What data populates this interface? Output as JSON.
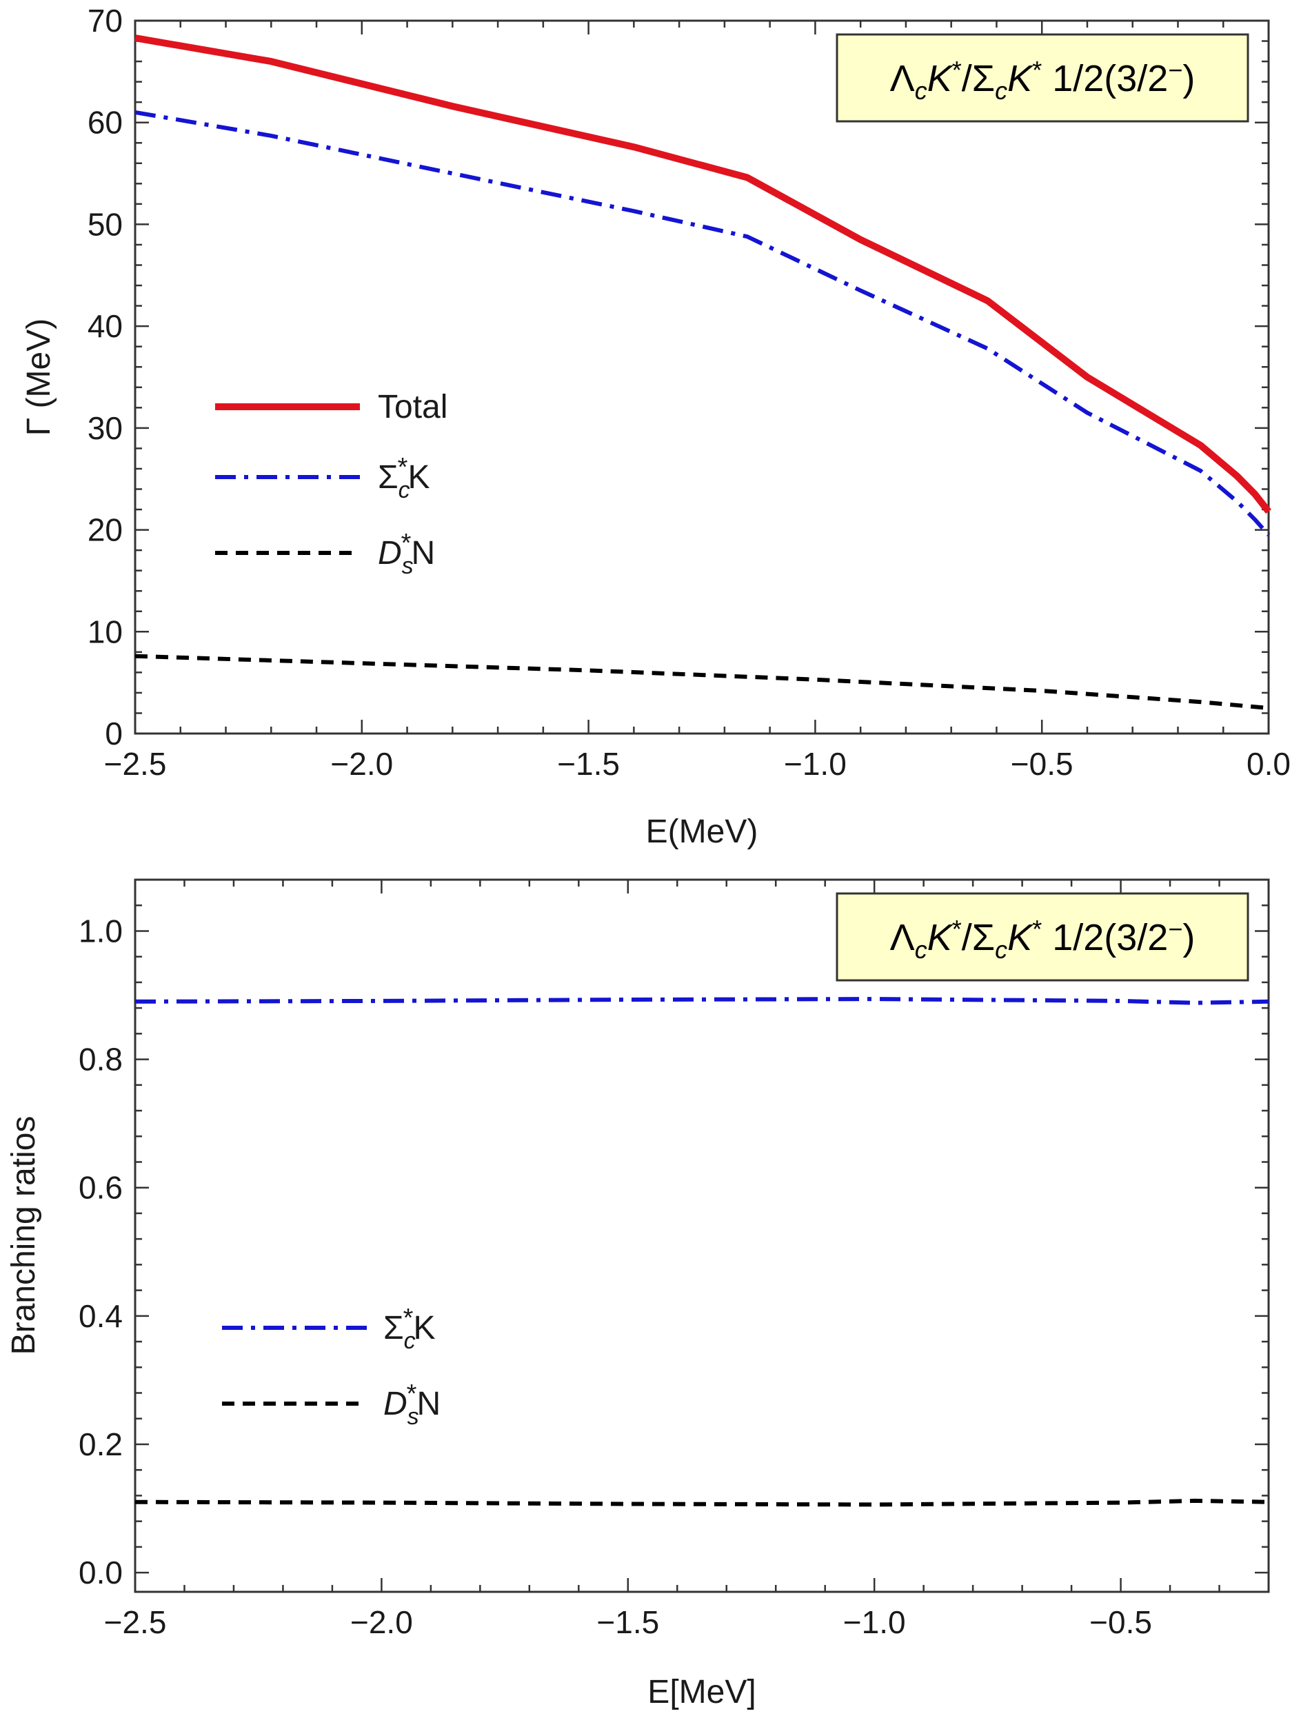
{
  "colors": {
    "total": "#e0141e",
    "sigma": "#1414d2",
    "ds": "#000000",
    "box_fill": "#ffffcc",
    "frame": "#333333"
  },
  "chart_data": [
    {
      "type": "line",
      "title": "ΛcK*/ΣcK* 1/2(3/2⁻)",
      "title_parts": [
        "Λ",
        "c",
        "K",
        "*",
        "/Σ",
        "c",
        "K",
        "*",
        " 1/2(3/2",
        "−",
        ")"
      ],
      "xlabel": "E(MeV)",
      "ylabel": "Γ (MeV)",
      "xlim": [
        -2.5,
        0.0
      ],
      "ylim": [
        0,
        70
      ],
      "xticks": [
        "−2.5",
        "−2.0",
        "−1.5",
        "−1.0",
        "−0.5",
        "0.0"
      ],
      "yticks": [
        "0",
        "10",
        "20",
        "30",
        "40",
        "50",
        "60",
        "70"
      ],
      "legend_position": "center-left",
      "series": [
        {
          "name": "Total",
          "style": "solid",
          "x": [
            -2.5,
            -2.2,
            -1.8,
            -1.4,
            -1.15,
            -0.9,
            -0.62,
            -0.4,
            -0.15,
            -0.07,
            -0.03,
            0.0
          ],
          "y": [
            68.3,
            66.0,
            61.6,
            57.6,
            54.6,
            48.5,
            42.5,
            35.0,
            28.3,
            25.3,
            23.5,
            21.8
          ]
        },
        {
          "name": "Σc*K",
          "name_parts": [
            "Σ",
            "c",
            "*",
            "K"
          ],
          "style": "dashdot",
          "x": [
            -2.5,
            -2.2,
            -1.8,
            -1.4,
            -1.15,
            -0.9,
            -0.62,
            -0.4,
            -0.15,
            -0.07,
            -0.03,
            0.0
          ],
          "y": [
            61.0,
            58.7,
            55.0,
            51.3,
            48.8,
            43.5,
            37.8,
            31.5,
            25.8,
            22.8,
            21.0,
            19.5
          ]
        },
        {
          "name": "Ds*N",
          "name_parts": [
            "D",
            "s",
            "*",
            "N"
          ],
          "style": "dashed",
          "x": [
            -2.5,
            -2.0,
            -1.5,
            -1.0,
            -0.5,
            -0.15,
            0.0
          ],
          "y": [
            7.6,
            6.9,
            6.2,
            5.3,
            4.2,
            3.1,
            2.5
          ]
        }
      ]
    },
    {
      "type": "line",
      "title": "ΛcK*/ΣcK* 1/2(3/2⁻)",
      "title_parts": [
        "Λ",
        "c",
        "K",
        "*",
        "/Σ",
        "c",
        "K",
        "*",
        " 1/2(3/2",
        "−",
        ")"
      ],
      "xlabel": "E[MeV]",
      "ylabel": "Branching ratios",
      "xlim": [
        -2.5,
        -0.2
      ],
      "ylim": [
        -0.03,
        1.08
      ],
      "xticks": [
        "−2.5",
        "−2.0",
        "−1.5",
        "−1.0",
        "−0.5"
      ],
      "yticks": [
        "0.0",
        "0.2",
        "0.4",
        "0.6",
        "0.8",
        "1.0"
      ],
      "legend_position": "center-left",
      "series": [
        {
          "name": "Σc*K",
          "name_parts": [
            "Σ",
            "c",
            "*",
            "K"
          ],
          "style": "dashdot",
          "x": [
            -2.5,
            -2.0,
            -1.5,
            -1.0,
            -0.5,
            -0.35,
            -0.2
          ],
          "y": [
            0.89,
            0.891,
            0.893,
            0.894,
            0.891,
            0.888,
            0.89
          ]
        },
        {
          "name": "Ds*N",
          "name_parts": [
            "D",
            "s",
            "*",
            "N"
          ],
          "style": "dashed",
          "x": [
            -2.5,
            -2.0,
            -1.5,
            -1.0,
            -0.5,
            -0.35,
            -0.2
          ],
          "y": [
            0.11,
            0.109,
            0.107,
            0.106,
            0.109,
            0.112,
            0.11
          ]
        }
      ]
    }
  ]
}
